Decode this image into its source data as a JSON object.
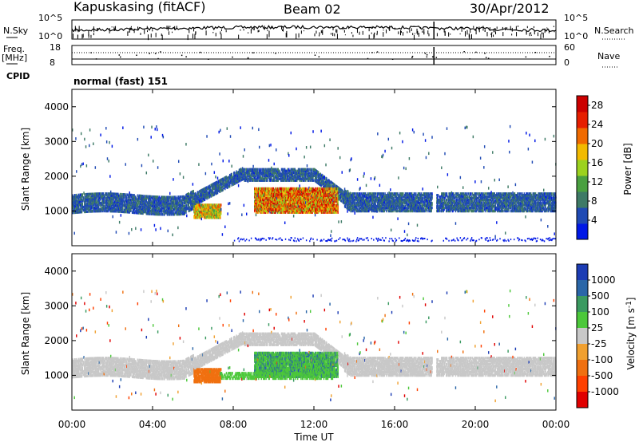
{
  "header": {
    "station": "Kapuskasing (fitACF)",
    "beam": "Beam 02",
    "date": "30/Apr/2012"
  },
  "top_panels": {
    "nsky_label": "N.Sky",
    "nsearch_label": "N.Search",
    "noise_ticks": [
      "10^5",
      "10^0"
    ],
    "noise_right_ticks": [
      "10^5",
      "10^0"
    ],
    "freq_label": "Freq.",
    "freq_unit": "[MHz]",
    "freq_ticks": [
      "18",
      "8"
    ],
    "nave_label": "Nave",
    "nave_ticks": [
      "60",
      "0"
    ],
    "cpid_label": "CPID",
    "cpid_text": "normal (fast) 151"
  },
  "chart_data": [
    {
      "type": "heatmap",
      "name": "power",
      "ylabel": "Slant Range [km]",
      "xlabel": "",
      "x_range_hours": [
        0,
        24
      ],
      "ylim": [
        0,
        4500
      ],
      "y_ticks": [
        "1000",
        "2000",
        "3000",
        "4000"
      ],
      "colorbar": {
        "label": "Power [dB]",
        "ticks": [
          "4",
          "8",
          "12",
          "16",
          "20",
          "24",
          "28"
        ],
        "range": [
          0,
          30
        ],
        "colors": [
          "#0018e6",
          "#1f4ab4",
          "#3e7a66",
          "#4aa040",
          "#9cd21e",
          "#f2ba00",
          "#f06a00",
          "#e61e00",
          "#cc0000"
        ]
      }
    },
    {
      "type": "heatmap",
      "name": "velocity",
      "ylabel": "Slant Range [km]",
      "xlabel": "Time UT",
      "x_ticks": [
        "00:00",
        "04:00",
        "08:00",
        "12:00",
        "16:00",
        "20:00",
        "00:00"
      ],
      "ylim": [
        0,
        4500
      ],
      "y_ticks": [
        "1000",
        "2000",
        "3000",
        "4000"
      ],
      "colorbar": {
        "label": "Velocity [m s",
        "label_sup": "-1",
        "label_end": "]",
        "ticks": [
          "1000",
          "500",
          "100",
          "25",
          "-25",
          "-100",
          "-500",
          "-1000"
        ],
        "colors": [
          "#1c3cb4",
          "#2a66a8",
          "#3a9a60",
          "#4cc83a",
          "#c8c8c8",
          "#f0a030",
          "#f07010",
          "#ff4000",
          "#e00000"
        ]
      }
    }
  ]
}
